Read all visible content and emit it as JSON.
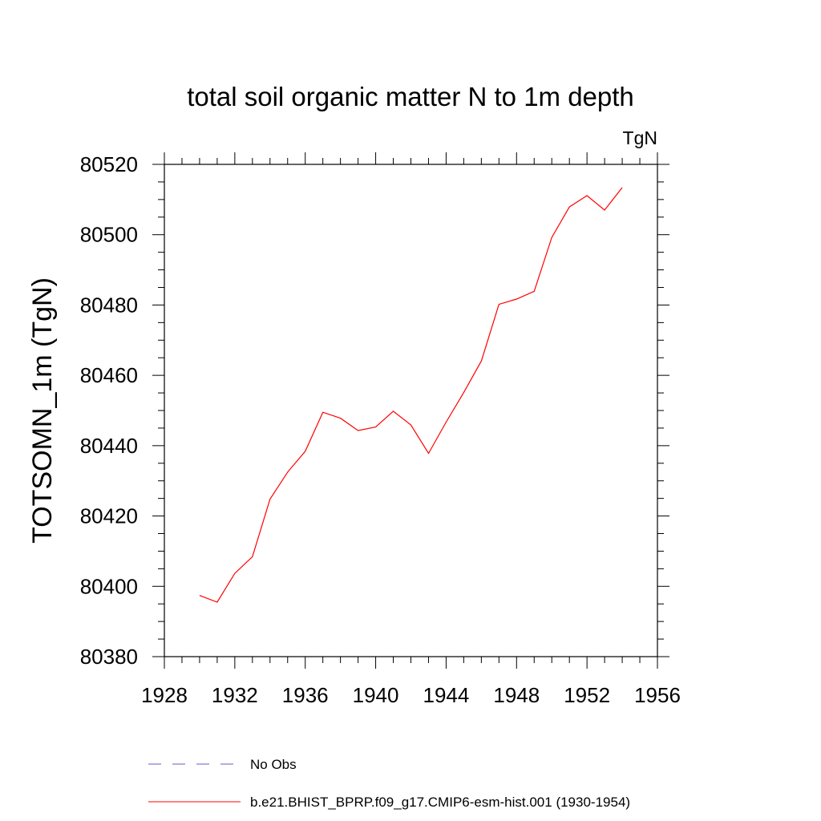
{
  "chart_data": {
    "type": "line",
    "title": "total soil organic matter N to 1m depth",
    "units_label": "TgN",
    "ylabel": "TOTSOMN_1m  (TgN)",
    "xlabel": "",
    "xlim": [
      1928,
      1956
    ],
    "ylim": [
      80380,
      80520
    ],
    "xticks": [
      1928,
      1932,
      1936,
      1940,
      1944,
      1948,
      1952,
      1956
    ],
    "yticks": [
      80380,
      80400,
      80420,
      80440,
      80460,
      80480,
      80500,
      80520
    ],
    "xtick_labels": [
      "1928",
      "1932",
      "1936",
      "1940",
      "1944",
      "1948",
      "1952",
      "1956"
    ],
    "ytick_labels": [
      "80380",
      "80400",
      "80420",
      "80440",
      "80460",
      "80480",
      "80500",
      "80520"
    ],
    "x_minor_step": 1,
    "y_minor_step": 5,
    "grid": false,
    "legend_position": "bottom",
    "series": [
      {
        "name": "b.e21.BHIST_BPRP.f09_g17.CMIP6-esm-hist.001 (1930-1954)",
        "color": "#ff0000",
        "style": "solid",
        "x": [
          1930,
          1931,
          1932,
          1933,
          1934,
          1935,
          1936,
          1937,
          1938,
          1939,
          1940,
          1941,
          1942,
          1943,
          1944,
          1945,
          1946,
          1947,
          1948,
          1949,
          1950,
          1951,
          1952,
          1953,
          1954
        ],
        "y": [
          80397.4,
          80395.5,
          80403.7,
          80408.4,
          80424.8,
          80432.5,
          80438.4,
          80449.5,
          80447.8,
          80444.3,
          80445.3,
          80449.8,
          80445.9,
          80437.8,
          80446.7,
          80455.1,
          80464.1,
          80480.2,
          80481.7,
          80483.9,
          80499.2,
          80507.9,
          80511.1,
          80507.0,
          80513.4
        ]
      }
    ],
    "legend": [
      {
        "label": "No Obs",
        "color": "#6a5acd",
        "style": "dashed"
      },
      {
        "label": "b.e21.BHIST_BPRP.f09_g17.CMIP6-esm-hist.001 (1930-1954)",
        "color": "#ff0000",
        "style": "solid"
      }
    ]
  }
}
